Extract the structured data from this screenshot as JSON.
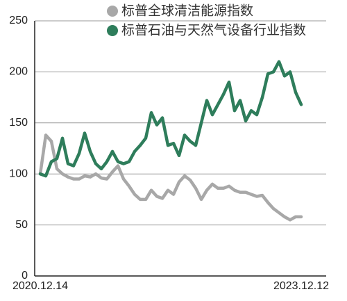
{
  "chart_data": {
    "type": "line",
    "categories": [
      "2020.12.14",
      null,
      null,
      null,
      null,
      null,
      null,
      null,
      null,
      null,
      null,
      null,
      null,
      null,
      null,
      null,
      null,
      null,
      null,
      null,
      null,
      null,
      null,
      null,
      null,
      null,
      null,
      null,
      null,
      null,
      null,
      null,
      null,
      null,
      null,
      null,
      null,
      null,
      null,
      null,
      null,
      null,
      null,
      null,
      null,
      null,
      null,
      "2023.12.12"
    ],
    "series": [
      {
        "name": "标普全球清洁能源指数",
        "color": "#a8a8a8",
        "values": [
          100,
          138,
          132,
          105,
          100,
          97,
          95,
          95,
          98,
          97,
          100,
          96,
          95,
          102,
          108,
          95,
          88,
          80,
          75,
          75,
          84,
          78,
          76,
          84,
          80,
          92,
          98,
          94,
          86,
          75,
          84,
          90,
          86,
          86,
          88,
          84,
          82,
          82,
          80,
          78,
          79,
          72,
          66,
          62,
          58,
          55,
          58,
          58
        ]
      },
      {
        "name": "标普石油与天然气设备行业指数",
        "color": "#2e7d5b",
        "values": [
          100,
          98,
          112,
          115,
          135,
          110,
          108,
          120,
          140,
          122,
          110,
          105,
          112,
          122,
          112,
          110,
          112,
          122,
          128,
          135,
          160,
          148,
          155,
          128,
          130,
          118,
          138,
          132,
          128,
          150,
          172,
          158,
          168,
          178,
          190,
          162,
          172,
          152,
          162,
          158,
          175,
          198,
          200,
          210,
          196,
          200,
          180,
          168
        ]
      }
    ],
    "ylim": [
      0,
      250
    ],
    "yticks": [
      0,
      50,
      100,
      150,
      200,
      250
    ],
    "grid": true
  }
}
